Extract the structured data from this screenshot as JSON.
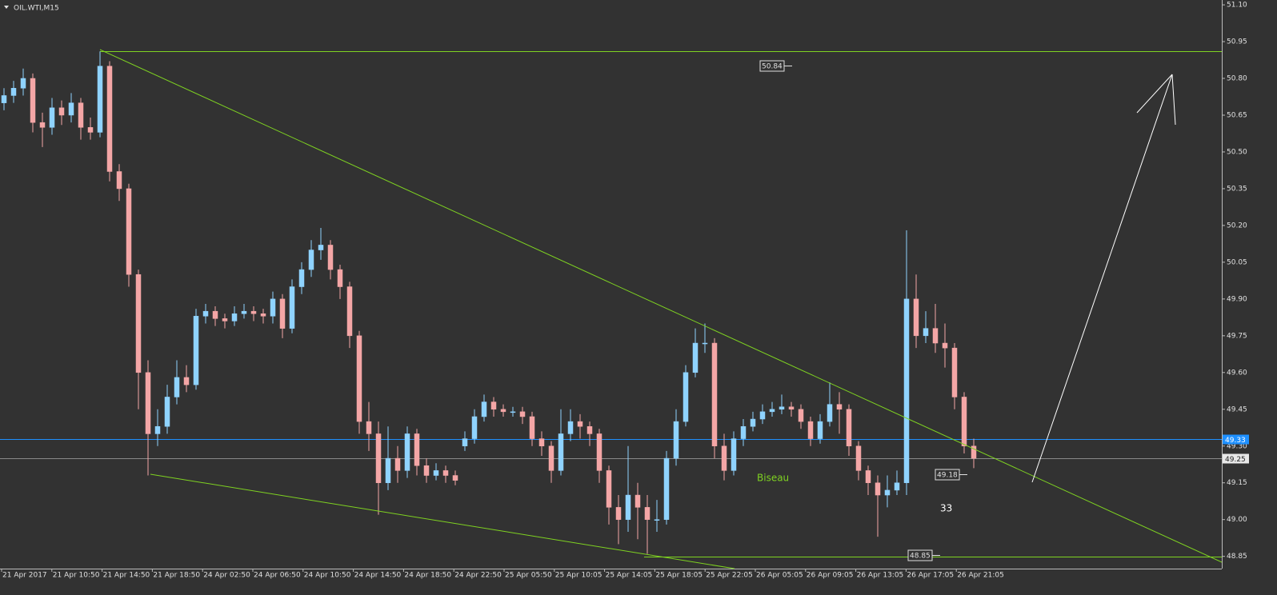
{
  "chart_data": {
    "type": "candlestick",
    "title": "OIL.WTI,M15",
    "up_color": "#8fd3ff",
    "down_color": "#f4a6a6",
    "ylim": [
      48.8,
      51.11
    ],
    "yticks": [
      {
        "value": 51.1,
        "label": "51.10"
      },
      50.95,
      {
        "value": 50.8,
        "label": "50.80"
      },
      50.65,
      {
        "value": 50.5,
        "label": "50.50"
      },
      50.35,
      {
        "value": 50.2,
        "label": "50.20"
      },
      50.05,
      {
        "value": 49.9,
        "label": "49.90"
      },
      49.75,
      {
        "value": 49.6,
        "label": "49.60"
      },
      49.45,
      {
        "value": 49.3,
        "label": "49.30"
      },
      49.15,
      {
        "value": 49,
        "label": "49.00"
      },
      48.85
    ],
    "categories": [
      "21 Apr 2017",
      "21 Apr 10:50",
      "21 Apr 14:50",
      "21 Apr 18:50",
      "24 Apr 02:50",
      "24 Apr 06:50",
      "24 Apr 10:50",
      "24 Apr 14:50",
      "24 Apr 18:50",
      "24 Apr 22:50",
      "25 Apr 05:50",
      "25 Apr 10:05",
      "25 Apr 14:05",
      "25 Apr 18:05",
      "25 Apr 22:05",
      "26 Apr 05:05",
      "26 Apr 09:05",
      "26 Apr 13:05",
      "26 Apr 17:05",
      "26 Apr 21:05"
    ],
    "open": [
      50.7,
      50.73,
      50.76,
      50.8,
      50.62,
      50.6,
      50.68,
      50.65,
      50.7,
      50.6,
      50.58,
      50.85,
      50.42,
      50.35,
      50.0,
      49.6,
      49.35,
      49.38,
      49.5,
      49.58,
      49.55,
      49.83,
      49.85,
      49.82,
      49.81,
      49.84,
      49.85,
      49.84,
      49.83,
      49.9,
      49.78,
      49.95,
      50.02,
      50.1,
      50.12,
      50.02,
      49.95,
      49.75,
      49.4,
      49.35,
      49.15,
      49.25,
      49.2,
      49.35,
      49.22,
      49.18,
      49.2,
      49.18,
      49.3,
      49.33,
      49.42,
      49.48,
      49.45,
      49.44,
      49.44,
      49.42,
      49.33,
      49.3,
      49.2,
      49.35,
      49.4,
      49.38,
      49.35,
      49.2,
      49.05,
      49.0,
      49.1,
      49.05,
      49.0,
      49.0,
      49.25,
      49.4,
      49.6,
      49.72,
      49.72,
      49.3,
      49.2,
      49.33,
      49.38,
      49.41,
      49.44,
      49.45,
      49.46,
      49.45,
      49.4,
      49.33,
      49.4,
      49.47,
      49.45,
      49.3,
      49.2,
      49.15,
      49.1,
      49.12,
      49.15,
      49.9,
      49.75,
      49.78,
      49.72,
      49.7,
      49.5,
      49.3
    ],
    "high": [
      50.76,
      50.79,
      50.84,
      50.82,
      50.66,
      50.72,
      50.71,
      50.74,
      50.72,
      50.64,
      50.91,
      50.87,
      50.45,
      50.37,
      50.02,
      49.65,
      49.45,
      49.55,
      49.65,
      49.63,
      49.86,
      49.88,
      49.87,
      49.84,
      49.87,
      49.88,
      49.87,
      49.86,
      49.93,
      49.92,
      49.98,
      50.05,
      50.14,
      50.19,
      50.14,
      50.04,
      49.97,
      49.77,
      49.48,
      49.4,
      49.38,
      49.3,
      49.38,
      49.37,
      49.25,
      49.23,
      49.22,
      49.2,
      49.36,
      49.45,
      49.51,
      49.5,
      49.47,
      49.46,
      49.46,
      49.44,
      49.36,
      49.32,
      49.45,
      49.45,
      49.43,
      49.4,
      49.37,
      49.22,
      49.1,
      49.3,
      49.15,
      49.1,
      49.08,
      49.28,
      49.45,
      49.63,
      49.78,
      49.8,
      49.74,
      49.35,
      49.36,
      49.41,
      49.44,
      49.47,
      49.48,
      49.51,
      49.48,
      49.47,
      49.42,
      49.43,
      49.56,
      49.52,
      49.47,
      49.32,
      49.22,
      49.18,
      49.18,
      49.2,
      50.18,
      50.0,
      49.85,
      49.88,
      49.8,
      49.72,
      49.52,
      49.33
    ],
    "low": [
      50.67,
      50.7,
      50.73,
      50.58,
      50.52,
      50.57,
      50.61,
      50.62,
      50.55,
      50.55,
      50.56,
      50.38,
      50.3,
      49.95,
      49.45,
      49.18,
      49.3,
      49.35,
      49.47,
      49.52,
      49.53,
      49.8,
      49.79,
      49.78,
      49.79,
      49.82,
      49.81,
      49.8,
      49.8,
      49.74,
      49.76,
      49.92,
      49.99,
      50.06,
      49.98,
      49.9,
      49.7,
      49.35,
      49.28,
      49.02,
      49.12,
      49.15,
      49.17,
      49.18,
      49.15,
      49.16,
      49.15,
      49.14,
      49.28,
      49.31,
      49.4,
      49.42,
      49.42,
      49.42,
      49.39,
      49.3,
      49.26,
      49.15,
      49.18,
      49.32,
      49.33,
      49.3,
      49.15,
      48.98,
      48.9,
      48.95,
      48.92,
      48.86,
      48.95,
      48.98,
      49.22,
      49.38,
      49.58,
      49.68,
      49.25,
      49.16,
      49.18,
      49.3,
      49.36,
      49.39,
      49.42,
      49.43,
      49.42,
      49.37,
      49.3,
      49.31,
      49.38,
      49.35,
      49.26,
      49.16,
      49.1,
      48.93,
      49.05,
      49.1,
      49.1,
      49.7,
      49.72,
      49.68,
      49.62,
      49.45,
      49.27,
      49.21
    ],
    "close": [
      50.73,
      50.76,
      50.8,
      50.62,
      50.6,
      50.68,
      50.65,
      50.7,
      50.6,
      50.58,
      50.85,
      50.42,
      50.35,
      50.0,
      49.6,
      49.35,
      49.38,
      49.5,
      49.58,
      49.55,
      49.83,
      49.85,
      49.82,
      49.81,
      49.84,
      49.85,
      49.84,
      49.83,
      49.9,
      49.78,
      49.95,
      50.02,
      50.1,
      50.12,
      50.02,
      49.95,
      49.75,
      49.4,
      49.35,
      49.15,
      49.25,
      49.2,
      49.35,
      49.22,
      49.18,
      49.2,
      49.18,
      49.16,
      49.33,
      49.42,
      49.48,
      49.45,
      49.44,
      49.44,
      49.42,
      49.33,
      49.3,
      49.2,
      49.35,
      49.4,
      49.38,
      49.35,
      49.2,
      49.05,
      49.0,
      49.1,
      49.05,
      49.0,
      49.0,
      49.25,
      49.4,
      49.6,
      49.72,
      49.72,
      49.3,
      49.2,
      49.33,
      49.38,
      49.41,
      49.44,
      49.45,
      49.46,
      49.45,
      49.4,
      49.33,
      49.4,
      49.47,
      49.45,
      49.3,
      49.2,
      49.15,
      49.1,
      49.12,
      49.15,
      49.9,
      49.75,
      49.78,
      49.72,
      49.7,
      49.5,
      49.3,
      49.25
    ],
    "hlines": [
      {
        "value": 50.91,
        "color": "#7fd321",
        "axis_label": false
      },
      {
        "value": 48.85,
        "color": "#7fd321",
        "axis_label": false
      },
      {
        "value": 49.33,
        "color": "#1e90ff",
        "axis_label": true
      },
      {
        "value": 49.25,
        "color": "#8a8a8a",
        "axis_label": true
      }
    ],
    "annotations": {
      "high_box": "50.84",
      "mid_box": "49.18",
      "low_box": "48.85",
      "pattern": "Biseau",
      "count": "33"
    }
  }
}
